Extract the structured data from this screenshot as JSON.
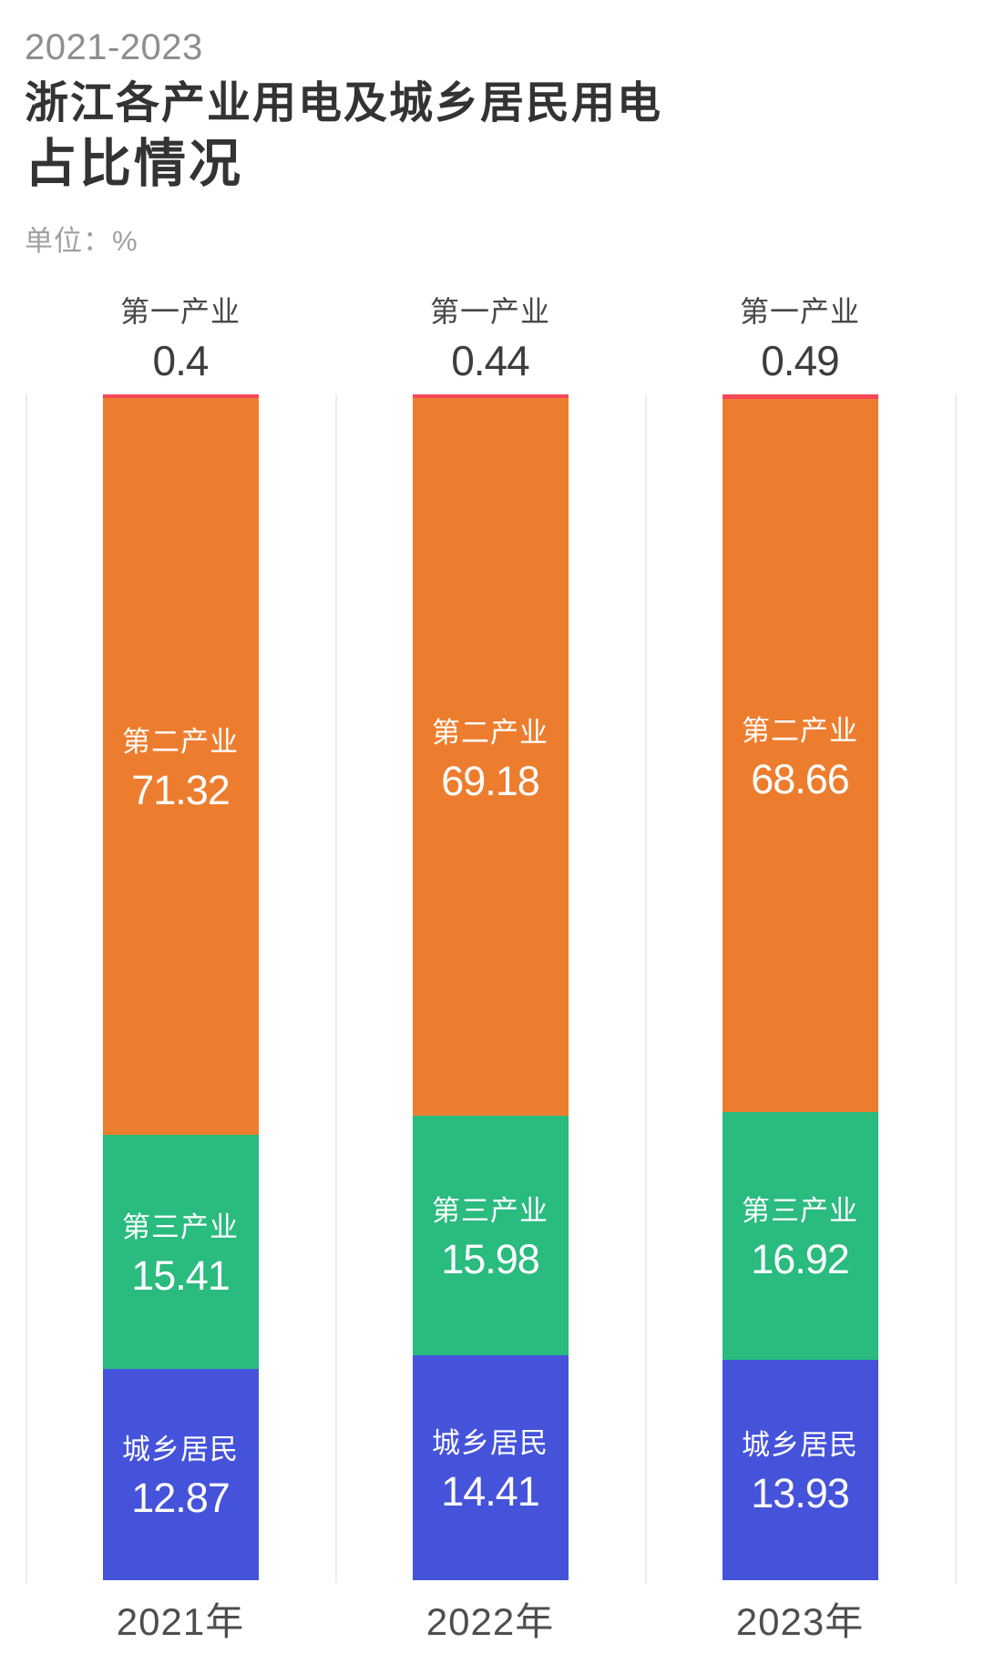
{
  "header": {
    "period": "2021-2023",
    "title_line1": "浙江各产业用电及城乡居民用电",
    "title_line2": "占比情况",
    "unit_label": "单位：%"
  },
  "chart_data": {
    "type": "bar",
    "stacked": true,
    "orientation": "vertical",
    "unit": "%",
    "value_range": [
      0,
      100
    ],
    "grid": "vertical-separators-only",
    "legend": "labels-inside-segments",
    "categories": [
      "2021年",
      "2022年",
      "2023年"
    ],
    "series": [
      {
        "id": "primary-industry",
        "name": "第一产业",
        "color": "#f7485a",
        "label_position": "above",
        "values": [
          0.4,
          0.44,
          0.49
        ]
      },
      {
        "id": "secondary-industry",
        "name": "第二产业",
        "color": "#ed7d2e",
        "label_position": "inside",
        "values": [
          71.32,
          69.18,
          68.66
        ]
      },
      {
        "id": "tertiary-industry",
        "name": "第三产业",
        "color": "#2abb7e",
        "label_position": "inside",
        "values": [
          15.41,
          15.98,
          16.92
        ]
      },
      {
        "id": "urban-rural-residents",
        "name": "城乡居民",
        "color": "#4553da",
        "label_position": "inside",
        "values": [
          12.87,
          14.41,
          13.93
        ]
      }
    ],
    "colors": {
      "background": "#ffffff",
      "grid_line": "#ececec",
      "title_text": "#333333",
      "muted_text": "#8e8e8e",
      "axis_label_text": "#4e4e4e",
      "segment_label_text": "#ffffff"
    }
  }
}
